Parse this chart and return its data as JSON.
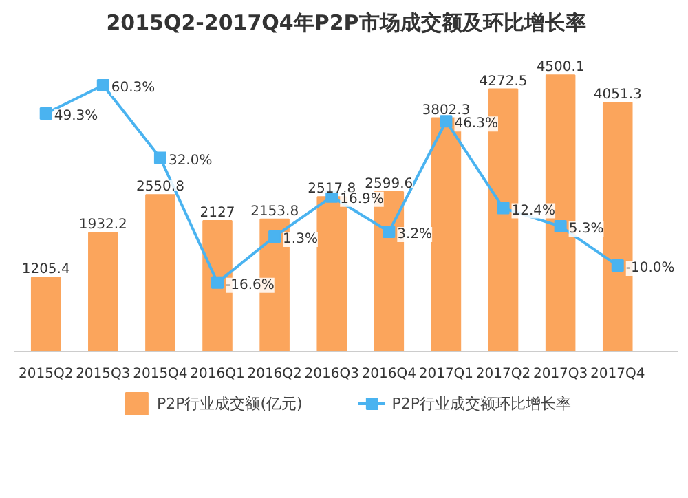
{
  "chart_data": {
    "type": "bar",
    "title": "2015Q2-2017Q4年P2P市场成交额及环比增长率",
    "categories": [
      "2015Q2",
      "2015Q3",
      "2015Q4",
      "2016Q1",
      "2016Q2",
      "2016Q3",
      "2016Q4",
      "2017Q1",
      "2017Q2",
      "2017Q3",
      "2017Q4"
    ],
    "series": [
      {
        "name": "P2P行业成交额(亿元)",
        "color": "#fba55c",
        "values": [
          1205.4,
          1932.2,
          2550.8,
          2127,
          2153.8,
          2517.8,
          2599.6,
          3802.3,
          4272.5,
          4500.1,
          4051.3
        ],
        "data_labels": true
      },
      {
        "name": "P2P行业成交额环比增长率",
        "type": "line",
        "axis": "y2",
        "color": "#4ab3f0",
        "marker": "square",
        "values": [
          49.3,
          60.3,
          32.0,
          -16.6,
          1.3,
          16.9,
          3.2,
          46.3,
          12.4,
          5.3,
          -10.0
        ],
        "value_labels": [
          "49.3%",
          "60.3%",
          "32.0%",
          "-16.6%",
          "1.3%",
          "16.9%",
          "3.2%",
          "46.3%",
          "12.4%",
          "5.3%",
          "-10.0%"
        ]
      }
    ],
    "legend": "bottom",
    "grid": false,
    "tick_labels": "x"
  }
}
